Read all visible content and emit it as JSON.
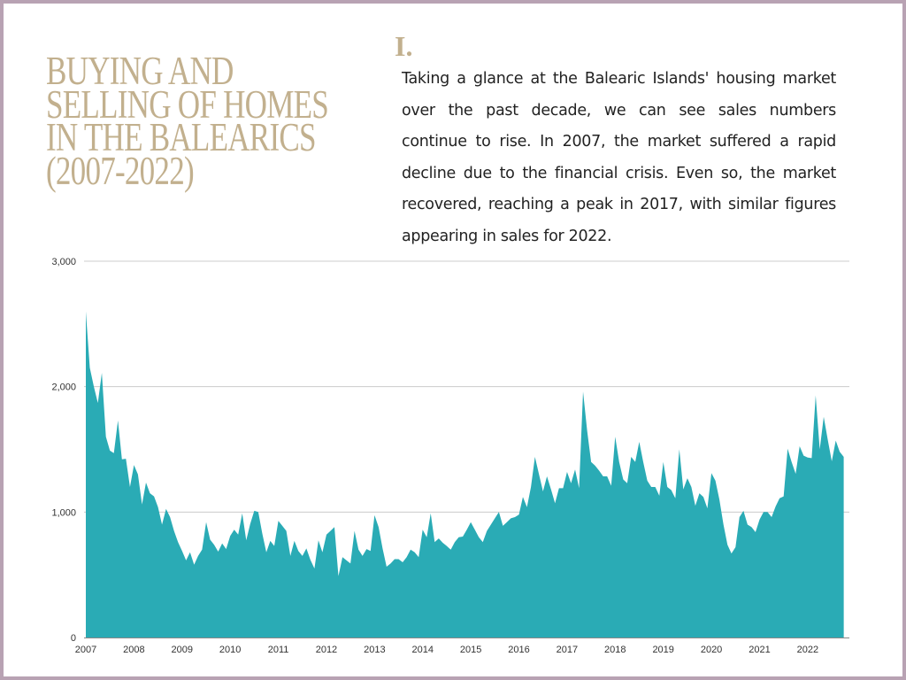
{
  "heading": {
    "title_lines": [
      "BUYING AND",
      "SELLING OF HOMES",
      "IN THE BALEARICS",
      "(2007-2022)"
    ],
    "numeral": "I.",
    "paragraph": "Taking a glance at the Balearic Islands' housing market over the past decade, we can see sales numbers continue to rise. In 2007, the market suffered a rapid decline due to the financial crisis. Even so, the market recovered, reaching a peak in 2017, with similar figures appearing in sales for 2022."
  },
  "colors": {
    "accent": "#c2b08e",
    "area": "#2aabb5",
    "border": "#b8a2b3",
    "grid": "#cccccc"
  },
  "chart_data": {
    "type": "area",
    "title": "",
    "xlabel": "",
    "ylabel": "",
    "x_start": "2007-01",
    "x_end": "2022-10",
    "frequency": "monthly",
    "xlim": [
      2007,
      2022.83
    ],
    "ylim": [
      0,
      3000
    ],
    "grid": true,
    "legend": "none",
    "y_ticks": [
      {
        "v": 0,
        "label": "0"
      },
      {
        "v": 1000,
        "label": "1,000"
      },
      {
        "v": 2000,
        "label": "2,000"
      },
      {
        "v": 3000,
        "label": "3,000"
      }
    ],
    "x_ticks": [
      "2007",
      "2008",
      "2009",
      "2010",
      "2011",
      "2012",
      "2013",
      "2014",
      "2015",
      "2016",
      "2017",
      "2018",
      "2019",
      "2020",
      "2021",
      "2022"
    ],
    "values": [
      2600,
      2150,
      2000,
      1870,
      2110,
      1600,
      1490,
      1470,
      1730,
      1420,
      1425,
      1200,
      1375,
      1300,
      1060,
      1235,
      1150,
      1125,
      1040,
      900,
      1025,
      960,
      850,
      760,
      690,
      615,
      680,
      580,
      650,
      700,
      920,
      780,
      740,
      685,
      750,
      705,
      810,
      860,
      820,
      990,
      775,
      905,
      1010,
      1000,
      830,
      680,
      770,
      730,
      930,
      890,
      850,
      650,
      770,
      690,
      650,
      710,
      620,
      550,
      775,
      680,
      820,
      850,
      880,
      490,
      640,
      615,
      590,
      850,
      700,
      650,
      705,
      690,
      975,
      880,
      710,
      565,
      590,
      625,
      625,
      600,
      640,
      700,
      680,
      640,
      860,
      800,
      990,
      760,
      790,
      755,
      730,
      700,
      760,
      800,
      805,
      860,
      920,
      860,
      800,
      760,
      850,
      900,
      950,
      1000,
      890,
      920,
      950,
      960,
      980,
      1120,
      1040,
      1200,
      1440,
      1300,
      1165,
      1285,
      1180,
      1070,
      1190,
      1190,
      1320,
      1230,
      1340,
      1190,
      1960,
      1650,
      1400,
      1370,
      1330,
      1285,
      1285,
      1210,
      1600,
      1400,
      1260,
      1230,
      1440,
      1400,
      1560,
      1400,
      1250,
      1200,
      1200,
      1130,
      1400,
      1200,
      1175,
      1110,
      1500,
      1180,
      1270,
      1200,
      1050,
      1150,
      1120,
      1030,
      1310,
      1250,
      1100,
      900,
      740,
      670,
      720,
      960,
      1010,
      900,
      880,
      840,
      940,
      1000,
      1000,
      960,
      1045,
      1110,
      1125,
      1505,
      1400,
      1305,
      1525,
      1450,
      1435,
      1430,
      1930,
      1500,
      1760,
      1580,
      1405,
      1570,
      1480,
      1440
    ]
  }
}
